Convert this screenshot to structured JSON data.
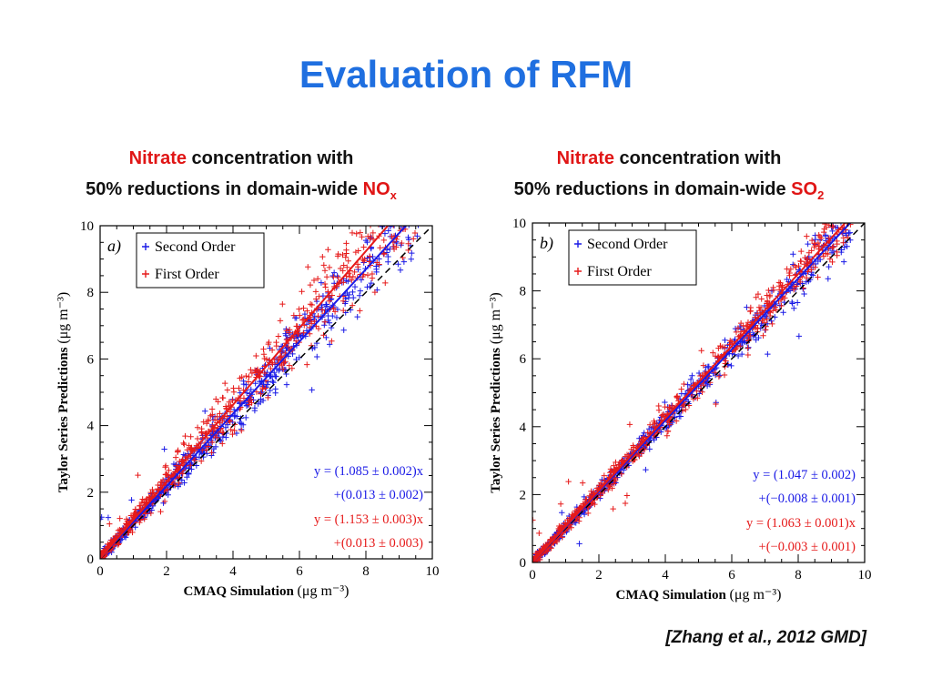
{
  "slide": {
    "title": "Evaluation of RFM",
    "citation": "[Zhang et al., 2012 GMD]"
  },
  "captions": [
    {
      "word": "Nitrate",
      "rest": " concentration with",
      "line2": "50% reductions in domain-wide ",
      "species": "NO",
      "sub": "x"
    },
    {
      "word": "Nitrate",
      "rest": " concentration with",
      "line2": "50% reductions in domain-wide ",
      "species": "SO",
      "sub": "2"
    }
  ],
  "colors": {
    "title": "#1f6fe0",
    "highlight": "#e01515",
    "second_order": "#1a1ae6",
    "first_order": "#e61a1a"
  },
  "chart_data": [
    {
      "type": "scatter",
      "panel_label": "a)",
      "xlabel": "CMAQ Simulation",
      "xunit": "(μg m⁻³)",
      "ylabel": "Taylor Series Predictions",
      "yunit": "(μg m⁻³)",
      "xlim": [
        0,
        10
      ],
      "ylim": [
        0,
        10
      ],
      "ticks": [
        0,
        2,
        4,
        6,
        8,
        10
      ],
      "legend": [
        "Second Order",
        "First Order"
      ],
      "legend_position": "top-left",
      "one_to_one_line": true,
      "series": [
        {
          "name": "Second Order",
          "color": "#1a1ae6",
          "slope": 1.085,
          "intercept": 0.013,
          "spread": 0.05
        },
        {
          "name": "First Order",
          "color": "#e61a1a",
          "slope": 1.153,
          "intercept": 0.013,
          "spread": 0.07
        }
      ],
      "fits": [
        {
          "color": "#1a1ae6",
          "line1": "y = (1.085 ± 0.002)x",
          "line2": "+(0.013 ± 0.002)"
        },
        {
          "color": "#e61a1a",
          "line1": "y = (1.153 ± 0.003)x",
          "line2": "+(0.013 ± 0.003)"
        }
      ]
    },
    {
      "type": "scatter",
      "panel_label": "b)",
      "xlabel": "CMAQ Simulation",
      "xunit": "(μg m⁻³)",
      "ylabel": "Taylor Series Predictions",
      "yunit": "(μg m⁻³)",
      "xlim": [
        0,
        10
      ],
      "ylim": [
        0,
        10
      ],
      "ticks": [
        0,
        2,
        4,
        6,
        8,
        10
      ],
      "legend": [
        "Second Order",
        "First Order"
      ],
      "legend_position": "top-left",
      "one_to_one_line": true,
      "series": [
        {
          "name": "Second Order",
          "color": "#1a1ae6",
          "slope": 1.047,
          "intercept": -0.008,
          "spread": 0.025
        },
        {
          "name": "First Order",
          "color": "#e61a1a",
          "slope": 1.063,
          "intercept": -0.003,
          "spread": 0.03
        }
      ],
      "fits": [
        {
          "color": "#1a1ae6",
          "line1": "y = (1.047 ± 0.002)",
          "line2": "+(−0.008 ± 0.001)"
        },
        {
          "color": "#e61a1a",
          "line1": "y = (1.063 ± 0.001)x",
          "line2": "+(−0.003 ± 0.001)"
        }
      ]
    }
  ]
}
